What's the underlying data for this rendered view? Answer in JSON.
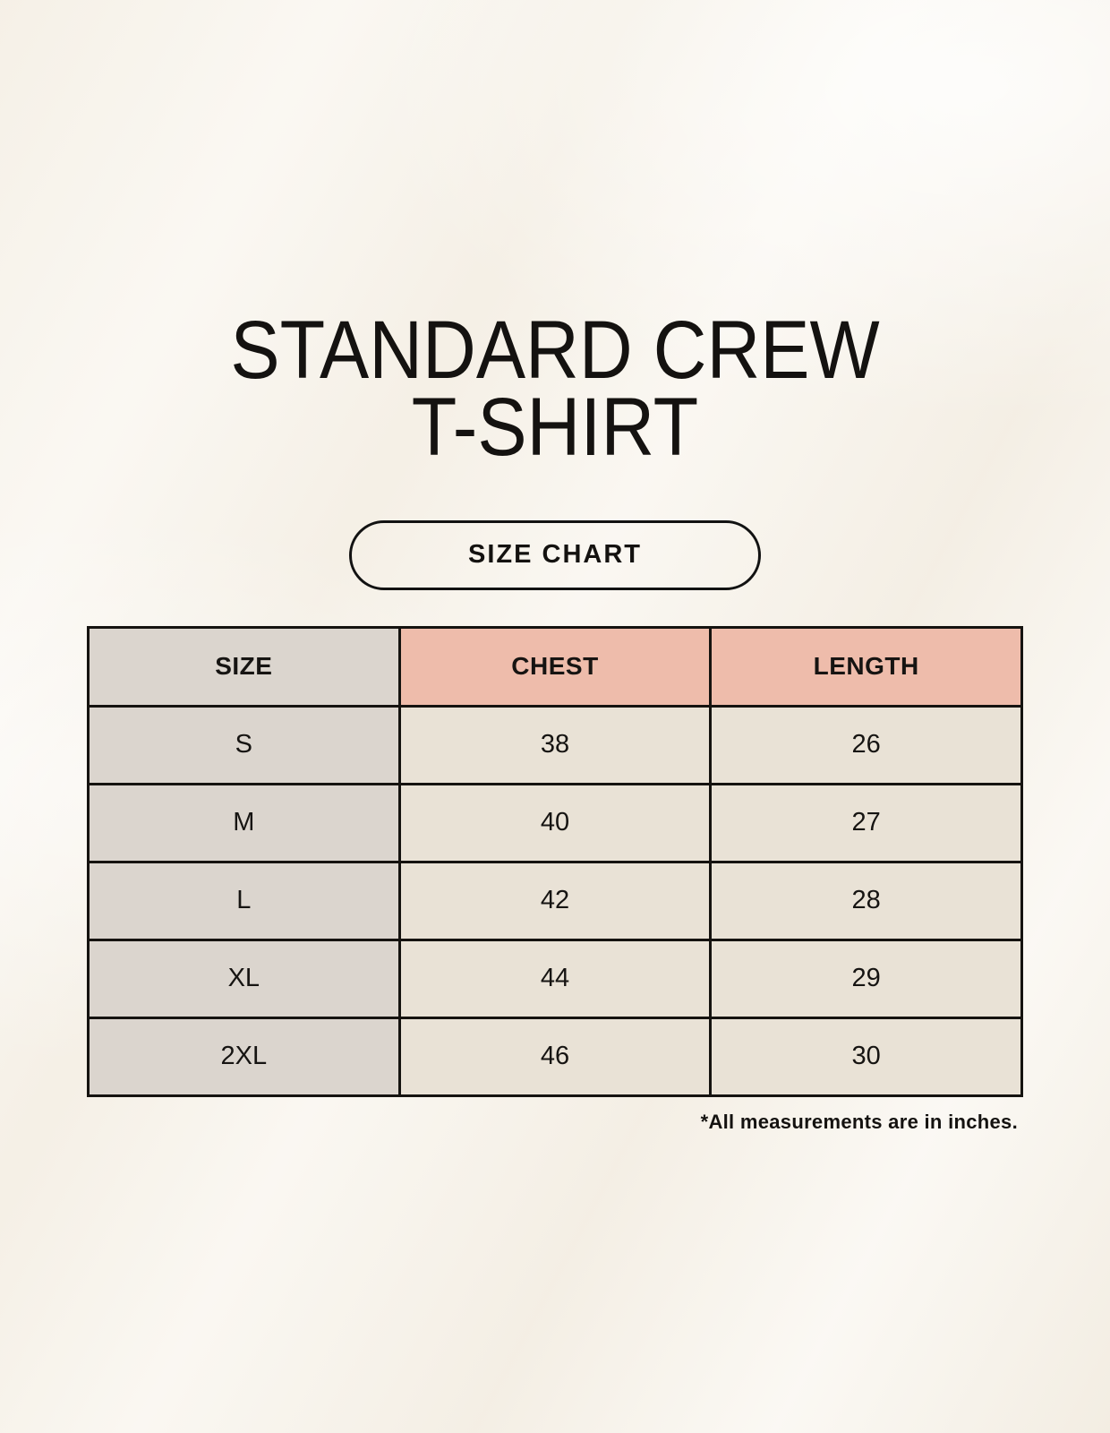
{
  "header": {
    "title_line1": "STANDARD CREW",
    "title_line2": "T-SHIRT",
    "size_chart_button_label": "SIZE CHART"
  },
  "chart_data": {
    "type": "table",
    "title": "Standard Crew T-Shirt Size Chart",
    "columns": [
      "SIZE",
      "CHEST",
      "LENGTH"
    ],
    "rows": [
      [
        "S",
        "38",
        "26"
      ],
      [
        "M",
        "40",
        "27"
      ],
      [
        "L",
        "42",
        "28"
      ],
      [
        "XL",
        "44",
        "29"
      ],
      [
        "2XL",
        "46",
        "30"
      ]
    ],
    "units": "inches"
  },
  "footnote": "*All measurements are in inches.",
  "colors": {
    "background": "#f8f4ec",
    "size_column_bg": "#dbd5ce",
    "measure_header_bg": "#eebcab",
    "value_cell_bg": "#e9e2d6",
    "border": "#151310",
    "text": "#141210"
  }
}
